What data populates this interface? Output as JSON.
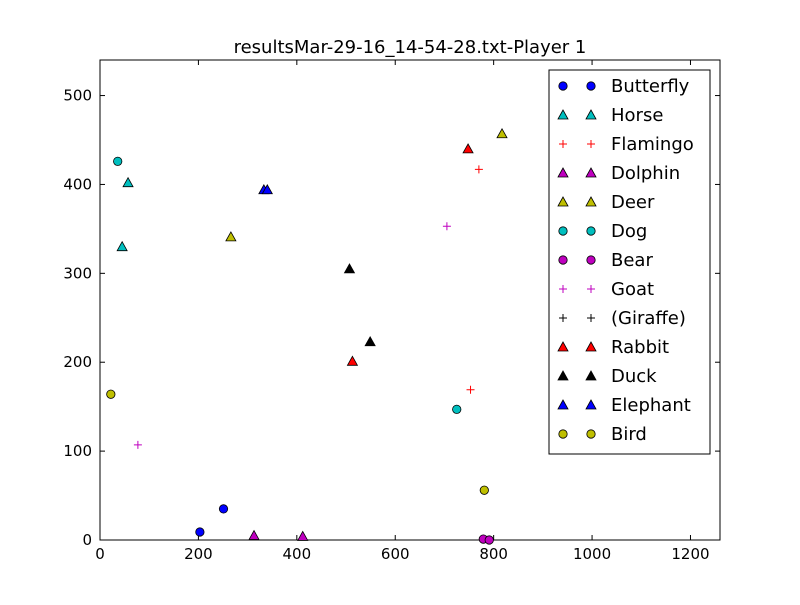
{
  "chart_data": {
    "type": "scatter",
    "title": "resultsMar-29-16_14-54-28.txt-Player 1",
    "xlabel": "",
    "ylabel": "",
    "xlim": [
      0,
      1260
    ],
    "ylim": [
      0,
      540
    ],
    "xticks": [
      0,
      200,
      400,
      600,
      800,
      1000,
      1200
    ],
    "yticks": [
      0,
      100,
      200,
      300,
      400,
      500
    ],
    "xtick_labels": [
      "0",
      "200",
      "400",
      "600",
      "800",
      "1000",
      "1200"
    ],
    "ytick_labels": [
      "0",
      "100",
      "200",
      "300",
      "400",
      "500"
    ],
    "grid": false,
    "legend_position": "top-right",
    "series": [
      {
        "name": "Butterfly",
        "marker": "circle",
        "color": "#0000ff",
        "points": [
          [
            203,
            9
          ],
          [
            251,
            35
          ]
        ]
      },
      {
        "name": "Horse",
        "marker": "triangle",
        "color": "#00bfbf",
        "points": [
          [
            57,
            402
          ],
          [
            45,
            330
          ]
        ]
      },
      {
        "name": "Flamingo",
        "marker": "plus",
        "color": "#ff0000",
        "points": [
          [
            770,
            417
          ],
          [
            753,
            169
          ]
        ]
      },
      {
        "name": "Dolphin",
        "marker": "triangle",
        "color": "#bf00bf",
        "points": [
          [
            313,
            5
          ],
          [
            412,
            4
          ]
        ]
      },
      {
        "name": "Deer",
        "marker": "triangle",
        "color": "#bfbf00",
        "points": [
          [
            266,
            341
          ],
          [
            817,
            457
          ]
        ]
      },
      {
        "name": "Dog",
        "marker": "circle",
        "color": "#00bfbf",
        "points": [
          [
            36,
            426
          ],
          [
            725,
            147
          ]
        ]
      },
      {
        "name": "Bear",
        "marker": "circle",
        "color": "#bf00bf",
        "points": [
          [
            779,
            1
          ],
          [
            791,
            0
          ]
        ]
      },
      {
        "name": "Goat",
        "marker": "plus",
        "color": "#bf00bf",
        "points": [
          [
            705,
            353
          ],
          [
            77,
            107
          ]
        ]
      },
      {
        "name": "(Giraffe)",
        "marker": "plus",
        "color": "#000000",
        "points": []
      },
      {
        "name": "Rabbit",
        "marker": "triangle",
        "color": "#ff0000",
        "points": [
          [
            748,
            440
          ],
          [
            513,
            201
          ]
        ]
      },
      {
        "name": "Duck",
        "marker": "triangle",
        "color": "#000000",
        "points": [
          [
            507,
            305
          ],
          [
            549,
            223
          ]
        ]
      },
      {
        "name": "Elephant",
        "marker": "triangle",
        "color": "#0000ff",
        "points": [
          [
            333,
            394
          ],
          [
            340,
            394
          ]
        ]
      },
      {
        "name": "Bird",
        "marker": "circle",
        "color": "#bfbf00",
        "points": [
          [
            22,
            164
          ],
          [
            781,
            56
          ]
        ]
      }
    ]
  }
}
